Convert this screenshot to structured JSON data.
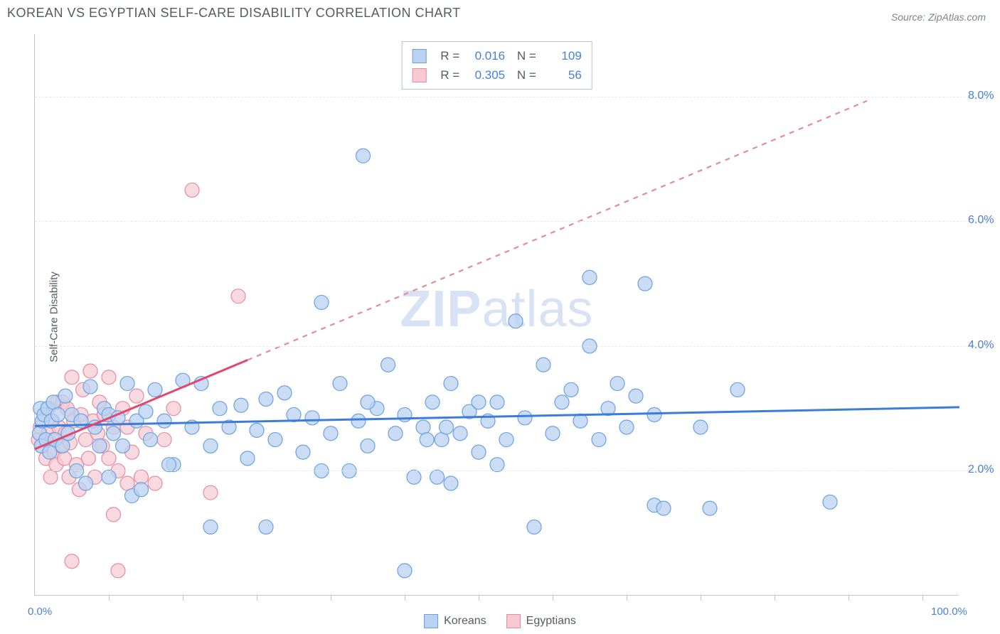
{
  "title": "KOREAN VS EGYPTIAN SELF-CARE DISABILITY CORRELATION CHART",
  "source_label": "Source: ZipAtlas.com",
  "yaxis_title": "Self-Care Disability",
  "watermark": {
    "bold": "ZIP",
    "light": "atlas"
  },
  "chart": {
    "type": "scatter",
    "xlim": [
      0,
      100
    ],
    "ylim": [
      0,
      9
    ],
    "ytick_values": [
      2,
      4,
      6,
      8
    ],
    "ytick_labels": [
      "2.0%",
      "4.0%",
      "6.0%",
      "8.0%"
    ],
    "ytick_color": "#4a80d6",
    "xtick_positions": [
      8,
      16,
      24,
      32,
      40,
      48,
      56,
      64,
      72,
      80,
      88,
      96
    ],
    "xaxis_labels": {
      "left": "0.0%",
      "right": "100.0%"
    },
    "xaxis_label_color": "#4a80d6",
    "plot_bg": "#ffffff",
    "grid_color": "#e6e9ed",
    "axis_color": "#bfc6d0",
    "series": [
      {
        "name": "Koreans",
        "fill": "#b9d2f2",
        "stroke": "#6aa0e0",
        "marker": "circle",
        "marker_radius": 10,
        "opacity": 0.75,
        "trend": {
          "slope": 0.003,
          "intercept": 2.72,
          "style": "solid",
          "color": "#3b7dd8",
          "width": 3,
          "x0": 0,
          "x1": 100
        },
        "legend_stats": {
          "R": "0.016",
          "N": "109"
        },
        "points": [
          [
            0.5,
            2.6
          ],
          [
            0.6,
            3.0
          ],
          [
            0.7,
            2.4
          ],
          [
            0.8,
            2.8
          ],
          [
            1.0,
            2.9
          ],
          [
            1.2,
            2.5
          ],
          [
            1.4,
            3.0
          ],
          [
            1.6,
            2.3
          ],
          [
            1.8,
            2.8
          ],
          [
            2.0,
            3.1
          ],
          [
            2.2,
            2.5
          ],
          [
            2.5,
            2.9
          ],
          [
            3.0,
            2.4
          ],
          [
            3.3,
            3.2
          ],
          [
            3.6,
            2.6
          ],
          [
            4.0,
            2.9
          ],
          [
            4.5,
            2.0
          ],
          [
            5.0,
            2.8
          ],
          [
            5.5,
            1.8
          ],
          [
            6.0,
            3.35
          ],
          [
            6.5,
            2.7
          ],
          [
            7.0,
            2.4
          ],
          [
            7.5,
            3.0
          ],
          [
            8.0,
            2.9
          ],
          [
            8.0,
            1.9
          ],
          [
            8.5,
            2.6
          ],
          [
            9.0,
            2.85
          ],
          [
            9.5,
            2.4
          ],
          [
            10.0,
            3.4
          ],
          [
            10.5,
            1.6
          ],
          [
            11.0,
            2.8
          ],
          [
            11.5,
            1.7
          ],
          [
            12.0,
            2.95
          ],
          [
            12.5,
            2.5
          ],
          [
            13.0,
            3.3
          ],
          [
            14.0,
            2.8
          ],
          [
            15.0,
            2.1
          ],
          [
            16.0,
            3.45
          ],
          [
            17.0,
            2.7
          ],
          [
            18.0,
            3.4
          ],
          [
            19.0,
            2.4
          ],
          [
            19.0,
            1.1
          ],
          [
            20.0,
            3.0
          ],
          [
            21.0,
            2.7
          ],
          [
            22.3,
            3.05
          ],
          [
            23.0,
            2.2
          ],
          [
            24.0,
            2.65
          ],
          [
            25.0,
            3.15
          ],
          [
            25.0,
            1.1
          ],
          [
            26.0,
            2.5
          ],
          [
            27.0,
            3.25
          ],
          [
            28.0,
            2.9
          ],
          [
            29.0,
            2.3
          ],
          [
            30.0,
            2.85
          ],
          [
            31.0,
            4.7
          ],
          [
            31.0,
            2.0
          ],
          [
            32.0,
            2.6
          ],
          [
            33.0,
            3.4
          ],
          [
            34.0,
            2.0
          ],
          [
            35.0,
            2.8
          ],
          [
            35.5,
            7.05
          ],
          [
            36.0,
            2.4
          ],
          [
            37.0,
            3.0
          ],
          [
            38.2,
            3.7
          ],
          [
            39.0,
            2.6
          ],
          [
            40.0,
            2.9
          ],
          [
            40.0,
            0.4
          ],
          [
            41.0,
            1.9
          ],
          [
            42.0,
            2.7
          ],
          [
            42.4,
            2.5
          ],
          [
            43.0,
            3.1
          ],
          [
            43.5,
            1.9
          ],
          [
            44.0,
            2.5
          ],
          [
            44.5,
            2.7
          ],
          [
            45.0,
            3.4
          ],
          [
            45.0,
            1.8
          ],
          [
            46.0,
            2.6
          ],
          [
            47.0,
            2.95
          ],
          [
            48.0,
            2.3
          ],
          [
            48.0,
            3.1
          ],
          [
            49.0,
            2.8
          ],
          [
            50.0,
            3.1
          ],
          [
            51.0,
            2.5
          ],
          [
            52.0,
            4.4
          ],
          [
            53.0,
            2.85
          ],
          [
            54.0,
            1.1
          ],
          [
            55.0,
            3.7
          ],
          [
            56.0,
            2.6
          ],
          [
            57.0,
            3.1
          ],
          [
            58.0,
            3.3
          ],
          [
            59.0,
            2.8
          ],
          [
            60.0,
            5.1
          ],
          [
            60.0,
            4.0
          ],
          [
            61.0,
            2.5
          ],
          [
            62.0,
            3.0
          ],
          [
            63.0,
            3.4
          ],
          [
            64.0,
            2.7
          ],
          [
            65.0,
            3.2
          ],
          [
            66.0,
            5.0
          ],
          [
            67.0,
            2.9
          ],
          [
            67.0,
            1.45
          ],
          [
            68.0,
            1.4
          ],
          [
            72.0,
            2.7
          ],
          [
            73.0,
            1.4
          ],
          [
            76.0,
            3.3
          ],
          [
            86.0,
            1.5
          ],
          [
            50.0,
            2.1
          ],
          [
            36.0,
            3.1
          ],
          [
            14.5,
            2.1
          ]
        ]
      },
      {
        "name": "Egyptians",
        "fill": "#f6c9d3",
        "stroke": "#e68aa1",
        "marker": "circle",
        "marker_radius": 10,
        "opacity": 0.7,
        "trend": {
          "slope": 0.062,
          "intercept": 2.35,
          "style": "dashed",
          "color": "#e58aa0",
          "width": 2.2,
          "dash": "7 7",
          "x0": 0,
          "x1": 90,
          "solid_segment_x1": 23,
          "solid_color": "#e2486f",
          "solid_width": 3
        },
        "legend_stats": {
          "R": "0.305",
          "N": "56"
        },
        "points": [
          [
            0.4,
            2.5
          ],
          [
            0.6,
            2.7
          ],
          [
            0.8,
            2.4
          ],
          [
            1.0,
            2.9
          ],
          [
            1.2,
            2.2
          ],
          [
            1.4,
            3.0
          ],
          [
            1.5,
            2.6
          ],
          [
            1.7,
            1.9
          ],
          [
            1.9,
            2.8
          ],
          [
            2.0,
            2.5
          ],
          [
            2.1,
            2.3
          ],
          [
            2.3,
            2.1
          ],
          [
            2.4,
            3.1
          ],
          [
            2.6,
            2.7
          ],
          [
            2.8,
            2.4
          ],
          [
            3.0,
            3.1
          ],
          [
            3.2,
            2.2
          ],
          [
            3.3,
            2.6
          ],
          [
            3.5,
            3.0
          ],
          [
            3.7,
            1.9
          ],
          [
            3.8,
            2.45
          ],
          [
            4.0,
            3.5
          ],
          [
            4.2,
            2.8
          ],
          [
            4.5,
            2.1
          ],
          [
            4.8,
            1.7
          ],
          [
            5.0,
            2.9
          ],
          [
            5.2,
            3.3
          ],
          [
            5.5,
            2.5
          ],
          [
            5.8,
            2.2
          ],
          [
            6.0,
            3.6
          ],
          [
            6.3,
            2.8
          ],
          [
            6.5,
            1.9
          ],
          [
            6.8,
            2.6
          ],
          [
            7.0,
            3.1
          ],
          [
            7.3,
            2.4
          ],
          [
            7.5,
            2.9
          ],
          [
            8.0,
            2.2
          ],
          [
            8.0,
            3.5
          ],
          [
            8.5,
            1.3
          ],
          [
            8.5,
            2.7
          ],
          [
            9.0,
            2.0
          ],
          [
            9.5,
            3.0
          ],
          [
            10.0,
            1.8
          ],
          [
            10.0,
            2.7
          ],
          [
            10.5,
            2.3
          ],
          [
            11.0,
            3.2
          ],
          [
            11.5,
            1.9
          ],
          [
            12.0,
            2.6
          ],
          [
            13.0,
            1.8
          ],
          [
            14.0,
            2.5
          ],
          [
            15.0,
            3.0
          ],
          [
            17.0,
            6.5
          ],
          [
            19.0,
            1.65
          ],
          [
            22.0,
            4.8
          ],
          [
            4.0,
            0.55
          ],
          [
            9.0,
            0.4
          ]
        ]
      }
    ]
  },
  "legend_bottom": [
    {
      "label": "Koreans",
      "fill": "#b9d2f2",
      "stroke": "#6aa0e0"
    },
    {
      "label": "Egyptians",
      "fill": "#f6c9d3",
      "stroke": "#e68aa1"
    }
  ]
}
